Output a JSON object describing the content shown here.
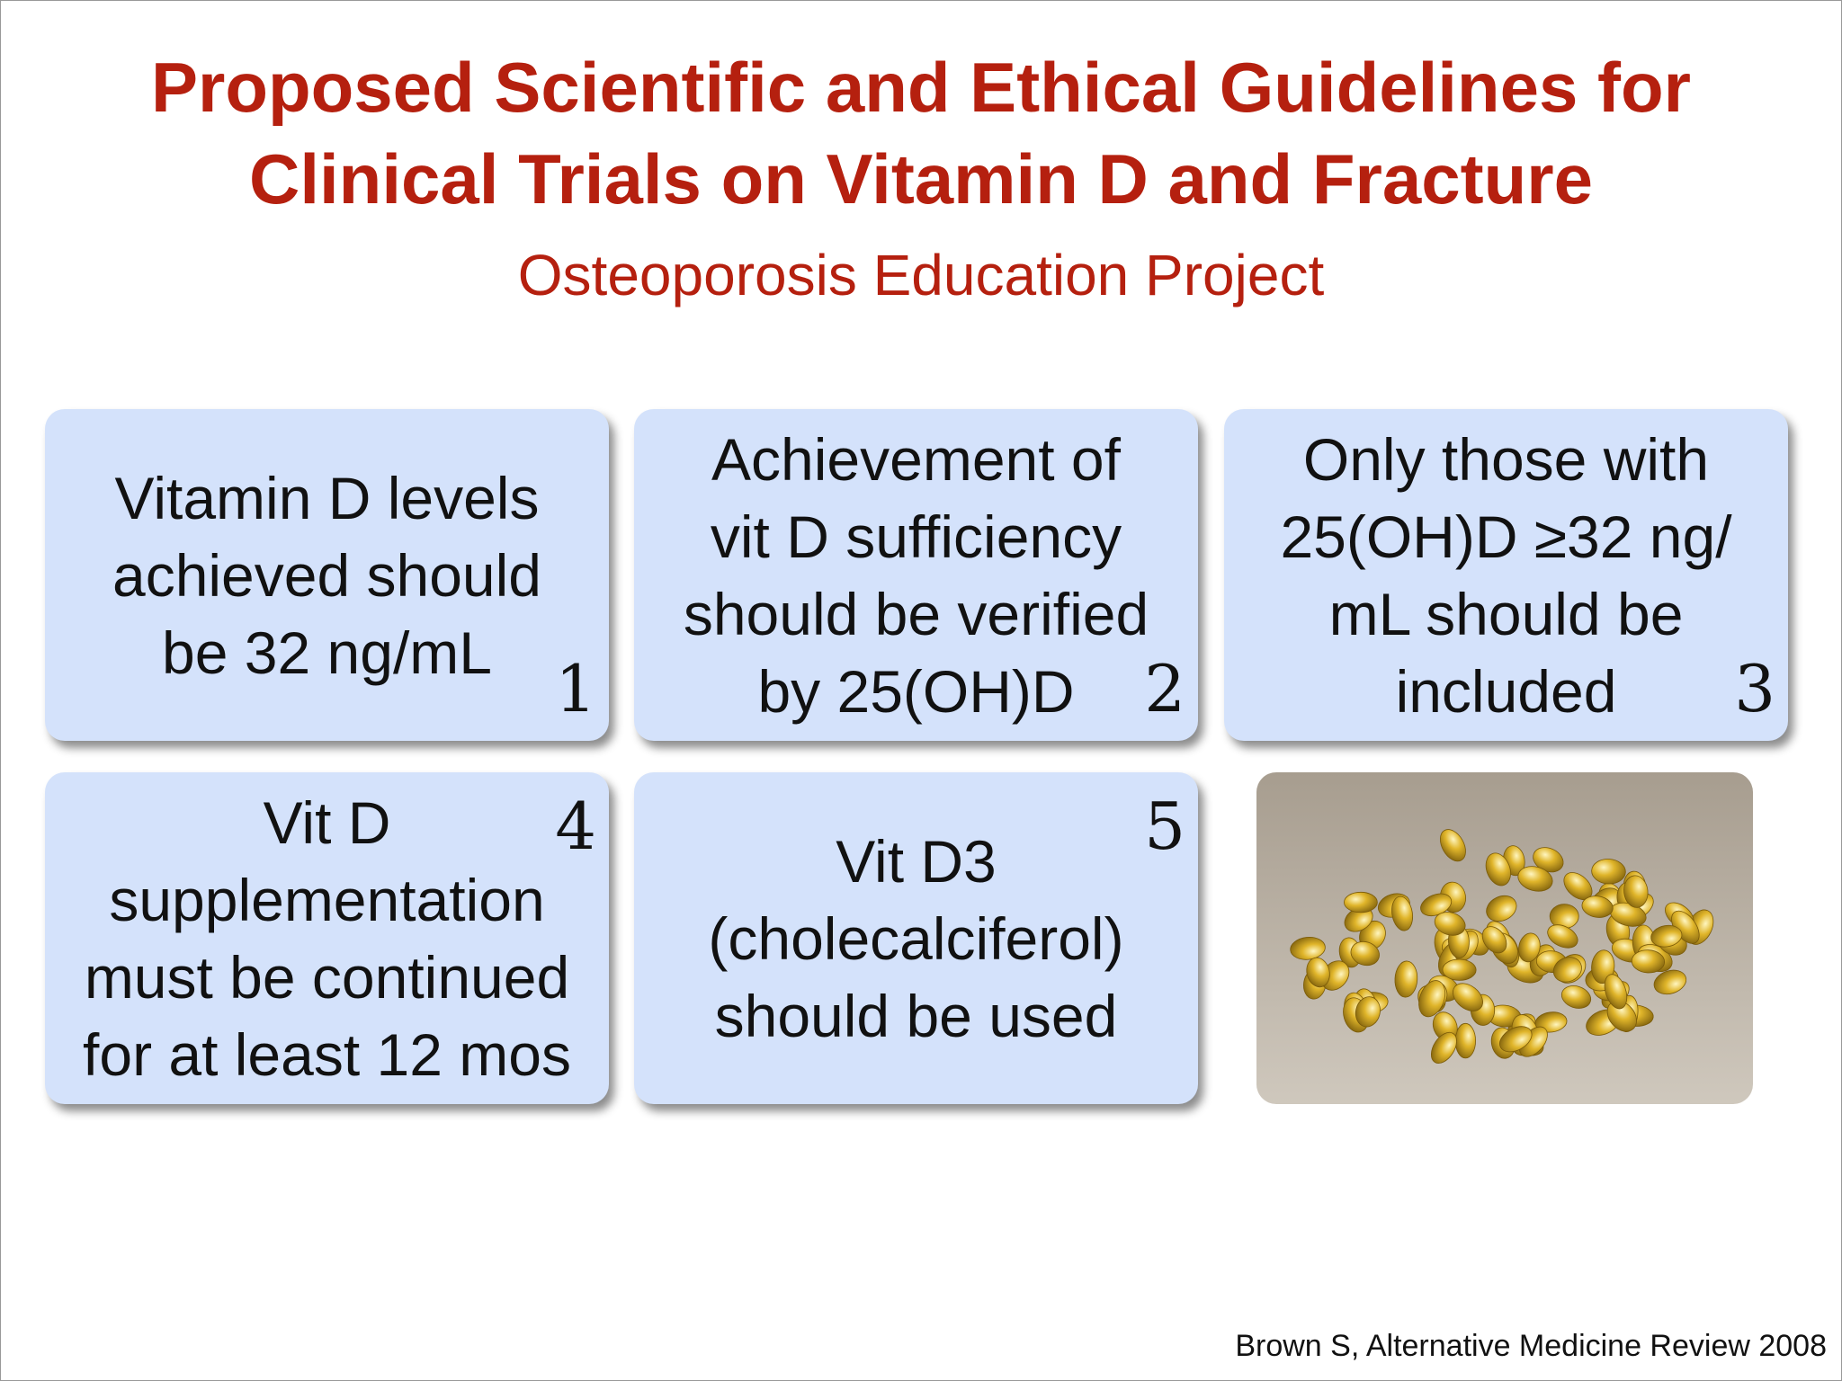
{
  "header": {
    "title_lines": [
      "Proposed Scientific and Ethical Guidelines for",
      "Clinical Trials on Vitamin D and Fracture"
    ],
    "subtitle": "Osteoporosis Education Project"
  },
  "boxes": [
    {
      "lines": [
        "Vitamin D levels",
        "achieved should",
        "be 32 ng/mL"
      ],
      "number": "1"
    },
    {
      "lines": [
        "Achievement of",
        "vit D sufficiency",
        "should be verified",
        "by 25(OH)D"
      ],
      "number": "2"
    },
    {
      "lines": [
        "Only those with",
        "25(OH)D ≥32 ng/",
        "mL should be",
        "included"
      ],
      "number": "3"
    },
    {
      "lines": [
        "Vit D",
        "supplementation",
        "must be continued",
        "for at least 12 mos"
      ],
      "number": "4"
    },
    {
      "lines": [
        "Vit D3",
        "(cholecalciferol)",
        "should be used"
      ],
      "number": "5"
    }
  ],
  "citation": "Brown S, Alternative  Medicine Review 2008"
}
